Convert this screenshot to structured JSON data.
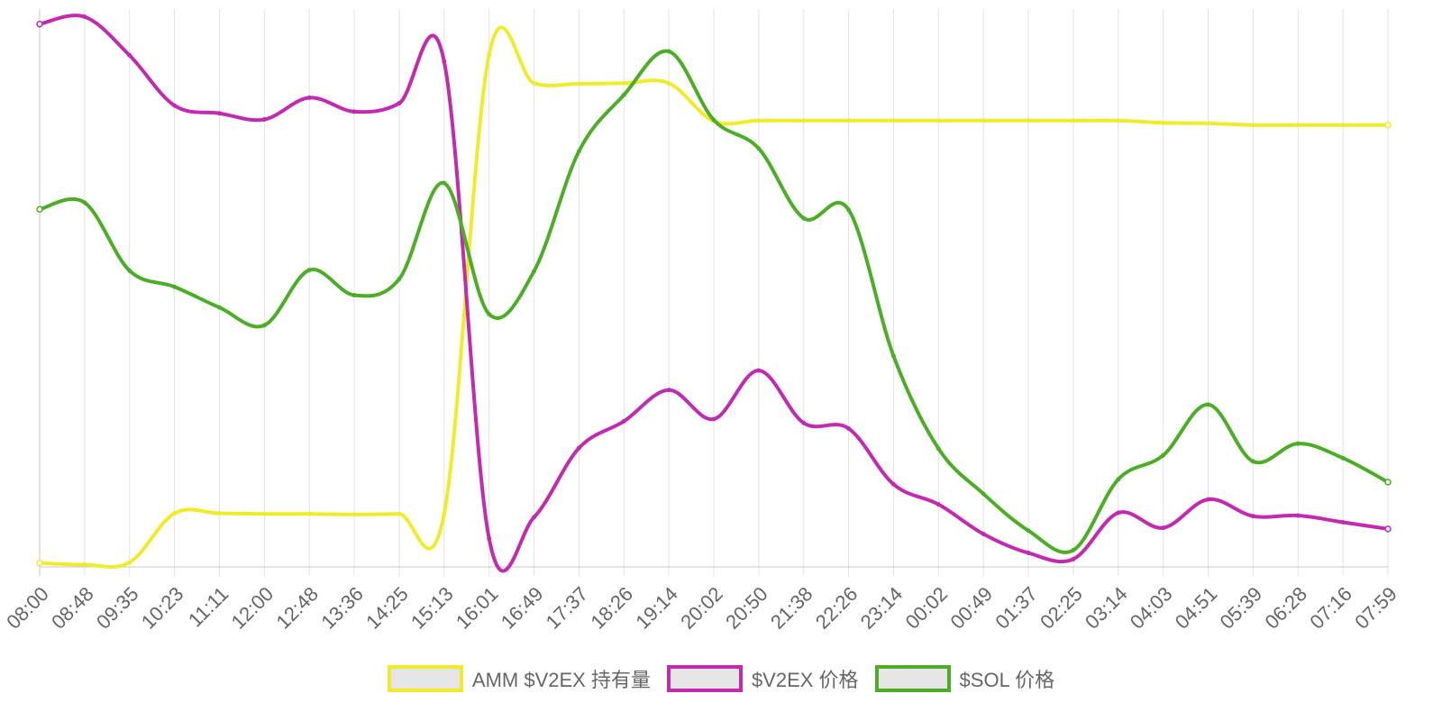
{
  "chart_data": {
    "type": "line",
    "x": [
      "08:00",
      "08:48",
      "09:35",
      "10:23",
      "11:11",
      "12:00",
      "12:48",
      "13:36",
      "14:25",
      "15:13",
      "16:01",
      "16:49",
      "17:37",
      "18:26",
      "19:14",
      "20:02",
      "20:50",
      "21:38",
      "22:26",
      "23:14",
      "00:02",
      "00:49",
      "01:37",
      "02:25",
      "03:14",
      "04:03",
      "04:51",
      "05:39",
      "06:28",
      "07:16",
      "07:59"
    ],
    "title": "",
    "xlabel": "",
    "ylabel": "",
    "ylim": [
      0,
      100
    ],
    "grid": true,
    "legend_position": "bottom",
    "series": [
      {
        "name": "AMM $V2EX 持有量",
        "color": "#f0ec2c",
        "values": [
          0.7,
          0.4,
          0.8,
          9.6,
          9.6,
          9.5,
          9.5,
          9.4,
          9.5,
          9.5,
          91.8,
          86.7,
          86.6,
          86.7,
          86.7,
          79.9,
          80.0,
          80.0,
          80.0,
          80.0,
          80.0,
          80.0,
          80.0,
          80.0,
          80.0,
          79.6,
          79.5,
          79.2,
          79.2,
          79.2,
          79.2
        ]
      },
      {
        "name": "$V2EX 价格",
        "color": "#c22ab0",
        "values": [
          97.3,
          98.6,
          91.7,
          82.7,
          81.3,
          80.2,
          84.1,
          81.6,
          83.1,
          90.6,
          5.1,
          8.9,
          21.3,
          26.1,
          31.7,
          26.5,
          35.2,
          25.8,
          24.8,
          14.8,
          11.2,
          5.9,
          2.5,
          1.4,
          9.7,
          7.0,
          12.1,
          9.1,
          9.2,
          8.0,
          6.8
        ]
      },
      {
        "name": "$SOL 价格",
        "color": "#4cae26",
        "values": [
          64.1,
          65.3,
          53.1,
          50.2,
          46.5,
          43.3,
          53.2,
          48.7,
          51.6,
          68.8,
          45.3,
          53.0,
          74.5,
          84.6,
          92.4,
          80.1,
          75.0,
          62.5,
          64.0,
          37.8,
          21.2,
          13.1,
          6.5,
          3.0,
          15.7,
          20.0,
          29.1,
          18.9,
          22.1,
          19.5,
          15.2
        ]
      }
    ]
  }
}
